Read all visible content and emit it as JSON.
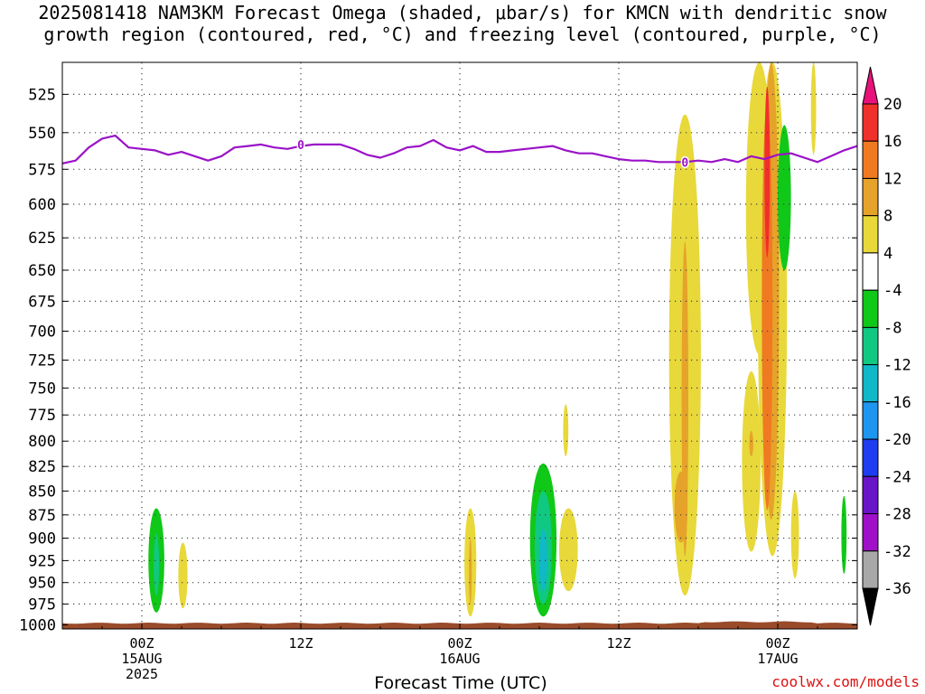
{
  "title": {
    "line1": "2025081418 NAM3KM Forecast Omega (shaded, μbar/s) for KMCN with dendritic snow",
    "line2": "growth region (contoured, red, °C) and freezing level (contoured, purple, °C)"
  },
  "xaxis_title": "Forecast Time (UTC)",
  "watermark": "coolwx.com/models",
  "colors": {
    "freezing_line": "#9a12c8",
    "terrain": "#9a4b2a",
    "grid": "#444444"
  },
  "chart_data": {
    "type": "heatmap",
    "title": "2025081418 NAM3KM Forecast Omega (shaded, μbar/s) for KMCN with dendritic snow growth region (contoured, red, °C) and freezing level (contoured, purple, °C)",
    "xlabel": "Forecast Time (UTC)",
    "ylabel": "",
    "x_ticks": [
      {
        "hour": 6,
        "label": [
          "00Z",
          "15AUG",
          "2025"
        ]
      },
      {
        "hour": 18,
        "label": [
          "12Z"
        ]
      },
      {
        "hour": 30,
        "label": [
          "00Z",
          "16AUG"
        ]
      },
      {
        "hour": 42,
        "label": [
          "12Z"
        ]
      },
      {
        "hour": 54,
        "label": [
          "00Z",
          "17AUG"
        ]
      }
    ],
    "xlim_hours": [
      0,
      60
    ],
    "y_ticks": [
      525,
      550,
      575,
      600,
      625,
      650,
      675,
      700,
      725,
      750,
      775,
      800,
      825,
      850,
      875,
      900,
      925,
      950,
      975,
      1000
    ],
    "ylim": [
      505,
      1005
    ],
    "y_scale": "log-pressure",
    "colorbar": {
      "labels": [
        20,
        16,
        12,
        8,
        4,
        -4,
        -8,
        -12,
        -16,
        -20,
        -24,
        -28,
        -32,
        -36
      ],
      "colors": [
        "#e8127a",
        "#f0302a",
        "#f07a22",
        "#e6a32a",
        "#e8d83a",
        "#ffffff",
        "#10c818",
        "#10c882",
        "#10b8c8",
        "#1e96f0",
        "#1e3cf0",
        "#6a14c8",
        "#a010c8",
        "#a8a8a8",
        "#000000"
      ]
    },
    "freezing_level_label": "0",
    "freezing_level": [
      [
        0,
        571
      ],
      [
        1,
        569
      ],
      [
        2,
        560
      ],
      [
        3,
        554
      ],
      [
        4,
        552
      ],
      [
        5,
        560
      ],
      [
        6,
        561
      ],
      [
        7,
        562
      ],
      [
        8,
        565
      ],
      [
        9,
        563
      ],
      [
        10,
        566
      ],
      [
        11,
        569
      ],
      [
        12,
        566
      ],
      [
        13,
        560
      ],
      [
        14,
        559
      ],
      [
        15,
        558
      ],
      [
        16,
        560
      ],
      [
        17,
        561
      ],
      [
        18,
        559
      ],
      [
        19,
        558
      ],
      [
        20,
        558
      ],
      [
        21,
        558
      ],
      [
        22,
        561
      ],
      [
        23,
        565
      ],
      [
        24,
        567
      ],
      [
        25,
        564
      ],
      [
        26,
        560
      ],
      [
        27,
        559
      ],
      [
        28,
        555
      ],
      [
        29,
        560
      ],
      [
        30,
        562
      ],
      [
        31,
        559
      ],
      [
        32,
        563
      ],
      [
        33,
        563
      ],
      [
        34,
        562
      ],
      [
        35,
        561
      ],
      [
        36,
        560
      ],
      [
        37,
        559
      ],
      [
        38,
        562
      ],
      [
        39,
        564
      ],
      [
        40,
        564
      ],
      [
        41,
        566
      ],
      [
        42,
        568
      ],
      [
        43,
        569
      ],
      [
        44,
        569
      ],
      [
        45,
        570
      ],
      [
        46,
        570
      ],
      [
        47,
        570
      ],
      [
        48,
        569
      ],
      [
        49,
        570
      ],
      [
        50,
        568
      ],
      [
        51,
        570
      ],
      [
        52,
        566
      ],
      [
        53,
        568
      ],
      [
        54,
        565
      ],
      [
        55,
        564
      ],
      [
        56,
        567
      ],
      [
        57,
        570
      ],
      [
        58,
        566
      ],
      [
        59,
        562
      ],
      [
        60,
        559
      ]
    ],
    "omega_features": [
      {
        "t": 7.1,
        "p_top": 868,
        "p_bot": 985,
        "w": 1.2,
        "value": -6
      },
      {
        "t": 7.1,
        "p_top": 895,
        "p_bot": 965,
        "w": 0.4,
        "value": -10
      },
      {
        "t": 9.1,
        "p_top": 905,
        "p_bot": 980,
        "w": 0.7,
        "value": 5
      },
      {
        "t": 30.8,
        "p_top": 868,
        "p_bot": 990,
        "w": 0.9,
        "value": 5
      },
      {
        "t": 30.8,
        "p_top": 900,
        "p_bot": 975,
        "w": 0.2,
        "value": 9
      },
      {
        "t": 36.3,
        "p_top": 822,
        "p_bot": 990,
        "w": 2.0,
        "value": -6
      },
      {
        "t": 36.3,
        "p_top": 850,
        "p_bot": 975,
        "w": 1.3,
        "value": -10
      },
      {
        "t": 36.3,
        "p_top": 890,
        "p_bot": 960,
        "w": 0.6,
        "value": -15
      },
      {
        "t": 38.2,
        "p_top": 868,
        "p_bot": 960,
        "w": 1.4,
        "value": 5
      },
      {
        "t": 38.0,
        "p_top": 765,
        "p_bot": 815,
        "w": 0.4,
        "value": 5
      },
      {
        "t": 47.0,
        "p_top": 538,
        "p_bot": 965,
        "w": 2.4,
        "value": 5
      },
      {
        "t": 47.0,
        "p_top": 628,
        "p_bot": 920,
        "w": 0.5,
        "value": 9
      },
      {
        "t": 46.7,
        "p_top": 830,
        "p_bot": 905,
        "w": 1.0,
        "value": 9
      },
      {
        "t": 52.6,
        "p_top": 505,
        "p_bot": 720,
        "w": 2.0,
        "value": 5
      },
      {
        "t": 53.6,
        "p_top": 505,
        "p_bot": 920,
        "w": 2.2,
        "value": 5
      },
      {
        "t": 53.5,
        "p_top": 505,
        "p_bot": 880,
        "w": 1.2,
        "value": 9
      },
      {
        "t": 53.2,
        "p_top": 530,
        "p_bot": 870,
        "w": 0.8,
        "value": 13
      },
      {
        "t": 53.2,
        "p_top": 520,
        "p_bot": 640,
        "w": 0.4,
        "value": 17
      },
      {
        "t": 52.0,
        "p_top": 735,
        "p_bot": 915,
        "w": 1.4,
        "value": 5
      },
      {
        "t": 52.0,
        "p_top": 790,
        "p_bot": 815,
        "w": 0.3,
        "value": 9
      },
      {
        "t": 54.5,
        "p_top": 545,
        "p_bot": 650,
        "w": 1.0,
        "value": -6
      },
      {
        "t": 55.3,
        "p_top": 850,
        "p_bot": 945,
        "w": 0.6,
        "value": 5
      },
      {
        "t": 56.7,
        "p_top": 505,
        "p_bot": 565,
        "w": 0.4,
        "value": 5
      },
      {
        "t": 59.0,
        "p_top": 855,
        "p_bot": 940,
        "w": 0.4,
        "value": -6
      }
    ]
  }
}
